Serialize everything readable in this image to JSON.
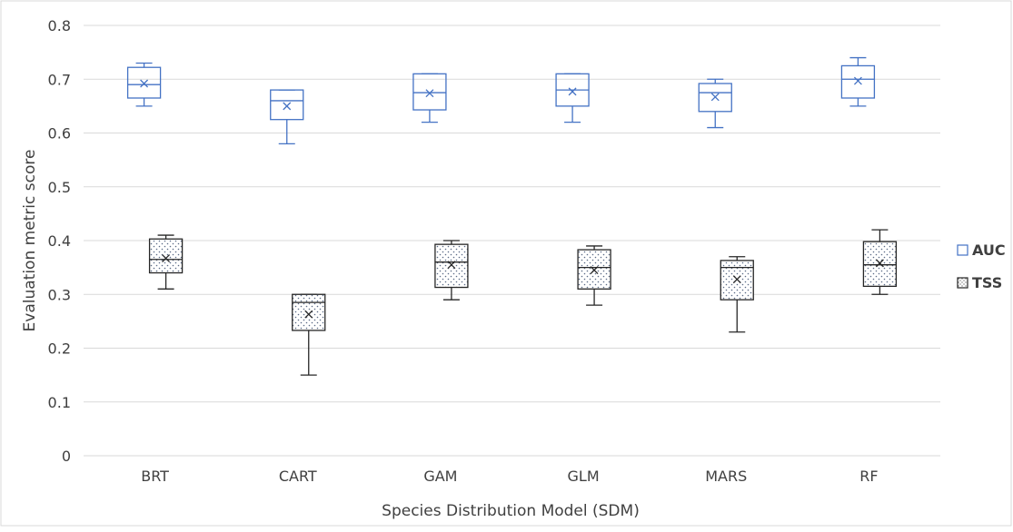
{
  "chart_data": {
    "type": "boxplot",
    "title": "",
    "xlabel": "Species Distribution Model (SDM)",
    "ylabel": "Evaluation metric score",
    "ylim": [
      0,
      0.8
    ],
    "yticks": [
      "0",
      "0.1",
      "0.2",
      "0.3",
      "0.4",
      "0.5",
      "0.6",
      "0.7",
      "0.8"
    ],
    "grid": "horizontal",
    "legend_position": "right",
    "categories": [
      "BRT",
      "CART",
      "GAM",
      "GLM",
      "MARS",
      "RF"
    ],
    "series": [
      {
        "name": "AUC",
        "color": "#4472c4",
        "fill": "none",
        "boxes": [
          {
            "min": 0.65,
            "q1": 0.665,
            "median": 0.69,
            "q3": 0.722,
            "max": 0.73,
            "mean": 0.692
          },
          {
            "min": 0.58,
            "q1": 0.625,
            "median": 0.66,
            "q3": 0.68,
            "max": 0.68,
            "mean": 0.65
          },
          {
            "min": 0.62,
            "q1": 0.643,
            "median": 0.675,
            "q3": 0.71,
            "max": 0.71,
            "mean": 0.674
          },
          {
            "min": 0.62,
            "q1": 0.65,
            "median": 0.68,
            "q3": 0.71,
            "max": 0.71,
            "mean": 0.677
          },
          {
            "min": 0.61,
            "q1": 0.64,
            "median": 0.675,
            "q3": 0.692,
            "max": 0.7,
            "mean": 0.667
          },
          {
            "min": 0.65,
            "q1": 0.665,
            "median": 0.7,
            "q3": 0.725,
            "max": 0.74,
            "mean": 0.697
          }
        ]
      },
      {
        "name": "TSS",
        "color": "#262626",
        "fill": "dotted",
        "boxes": [
          {
            "min": 0.31,
            "q1": 0.34,
            "median": 0.365,
            "q3": 0.403,
            "max": 0.41,
            "mean": 0.367
          },
          {
            "min": 0.15,
            "q1": 0.233,
            "median": 0.285,
            "q3": 0.3,
            "max": 0.3,
            "mean": 0.263
          },
          {
            "min": 0.29,
            "q1": 0.313,
            "median": 0.36,
            "q3": 0.393,
            "max": 0.4,
            "mean": 0.355
          },
          {
            "min": 0.28,
            "q1": 0.31,
            "median": 0.35,
            "q3": 0.383,
            "max": 0.39,
            "mean": 0.345
          },
          {
            "min": 0.23,
            "q1": 0.29,
            "median": 0.35,
            "q3": 0.363,
            "max": 0.37,
            "mean": 0.328
          },
          {
            "min": 0.3,
            "q1": 0.315,
            "median": 0.355,
            "q3": 0.398,
            "max": 0.42,
            "mean": 0.358
          }
        ]
      }
    ]
  }
}
